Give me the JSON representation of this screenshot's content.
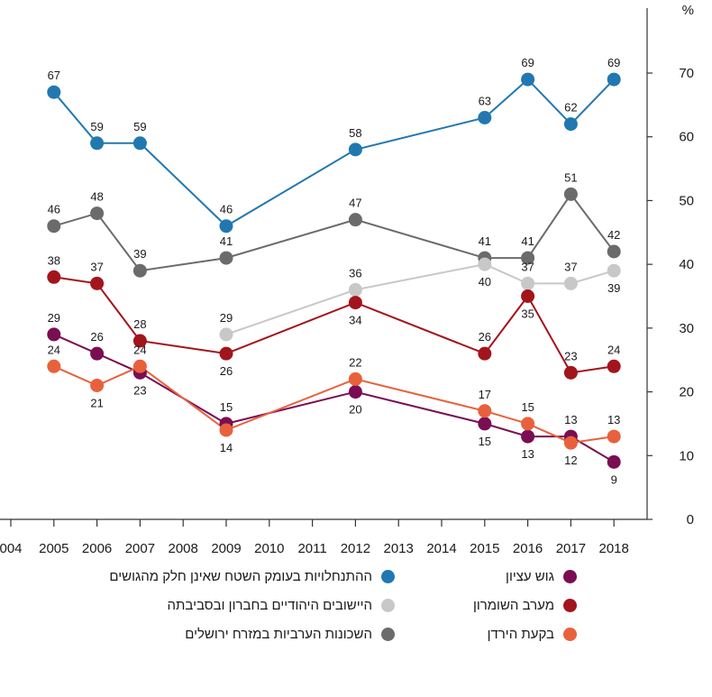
{
  "chart_data": {
    "type": "line",
    "ylabel": "%",
    "ylim": [
      0,
      70
    ],
    "yticks": [
      0,
      10,
      20,
      30,
      40,
      50,
      60,
      70
    ],
    "x_tick_labels": [
      "004",
      "2005",
      "2006",
      "2007",
      "2008",
      "2009",
      "2010",
      "2011",
      "2012",
      "2013",
      "2014",
      "2015",
      "2016",
      "2017",
      "2018"
    ],
    "grid": false,
    "legend_position": "bottom",
    "series": [
      {
        "name": "ההתנחלויות בעומק השטח שאינן חלק מהגושים",
        "color": "#2178b0",
        "x": [
          2005,
          2006,
          2007,
          2009,
          2012,
          2015,
          2016,
          2017,
          2018
        ],
        "values": [
          67,
          59,
          59,
          46,
          58,
          63,
          69,
          62,
          69
        ],
        "labels": [
          "67",
          "59",
          "59",
          "46",
          "58",
          "63",
          "69",
          "62",
          "69"
        ]
      },
      {
        "name": "השכונות הערביות במזרח ירושלים",
        "color": "#6b6b6b",
        "x": [
          2005,
          2006,
          2007,
          2009,
          2012,
          2015,
          2016,
          2017,
          2018
        ],
        "values": [
          46,
          48,
          39,
          41,
          47,
          41,
          41,
          51,
          42
        ],
        "labels": [
          "46",
          "48",
          "39",
          "41",
          "47",
          "41",
          "41",
          "51",
          "42"
        ]
      },
      {
        "name": "היישובים היהודיים בחברון ובסביבתה",
        "color": "#c8c8c8",
        "x": [
          2009,
          2012,
          2015,
          2016,
          2017,
          2018
        ],
        "values": [
          29,
          36,
          40,
          37,
          37,
          39
        ],
        "labels": [
          "29",
          "36",
          "40",
          "37",
          "37",
          "39"
        ]
      },
      {
        "name": "מערב השומרון",
        "color": "#a3151c",
        "x": [
          2005,
          2006,
          2007,
          2009,
          2012,
          2015,
          2016,
          2017,
          2018
        ],
        "values": [
          38,
          37,
          28,
          26,
          34,
          26,
          35,
          23,
          24
        ],
        "labels": [
          "38",
          "37",
          "28",
          "26",
          "34",
          "26",
          "35",
          "23",
          "24"
        ]
      },
      {
        "name": "גוש עציון",
        "color": "#7a0e52",
        "x": [
          2005,
          2006,
          2007,
          2009,
          2012,
          2015,
          2016,
          2017,
          2018
        ],
        "values": [
          29,
          26,
          23,
          15,
          20,
          15,
          13,
          13,
          9
        ],
        "labels": [
          "29",
          "26",
          "23",
          "15",
          "20",
          "15",
          "13",
          "13",
          "9"
        ]
      },
      {
        "name": "בקעת הירדן",
        "color": "#e8613c",
        "x": [
          2005,
          2006,
          2007,
          2009,
          2012,
          2015,
          2016,
          2017,
          2018
        ],
        "values": [
          24,
          21,
          24,
          14,
          22,
          17,
          15,
          12,
          13
        ],
        "labels": [
          "24",
          "21",
          "24",
          "14",
          "22",
          "17",
          "15",
          "12",
          "13"
        ]
      }
    ]
  },
  "legend": {
    "right_column": [
      {
        "label": "גוש עציון",
        "color": "#7a0e52"
      },
      {
        "label": "מערב השומרון",
        "color": "#a3151c"
      },
      {
        "label": "בקעת הירדן",
        "color": "#e8613c"
      }
    ],
    "left_column": [
      {
        "label": "ההתנחלויות בעומק השטח שאינן חלק מהגושים",
        "color": "#2178b0"
      },
      {
        "label": "היישובים היהודיים בחברון ובסביבתה",
        "color": "#c8c8c8"
      },
      {
        "label": "השכונות הערביות במזרח ירושלים",
        "color": "#6b6b6b"
      }
    ]
  }
}
